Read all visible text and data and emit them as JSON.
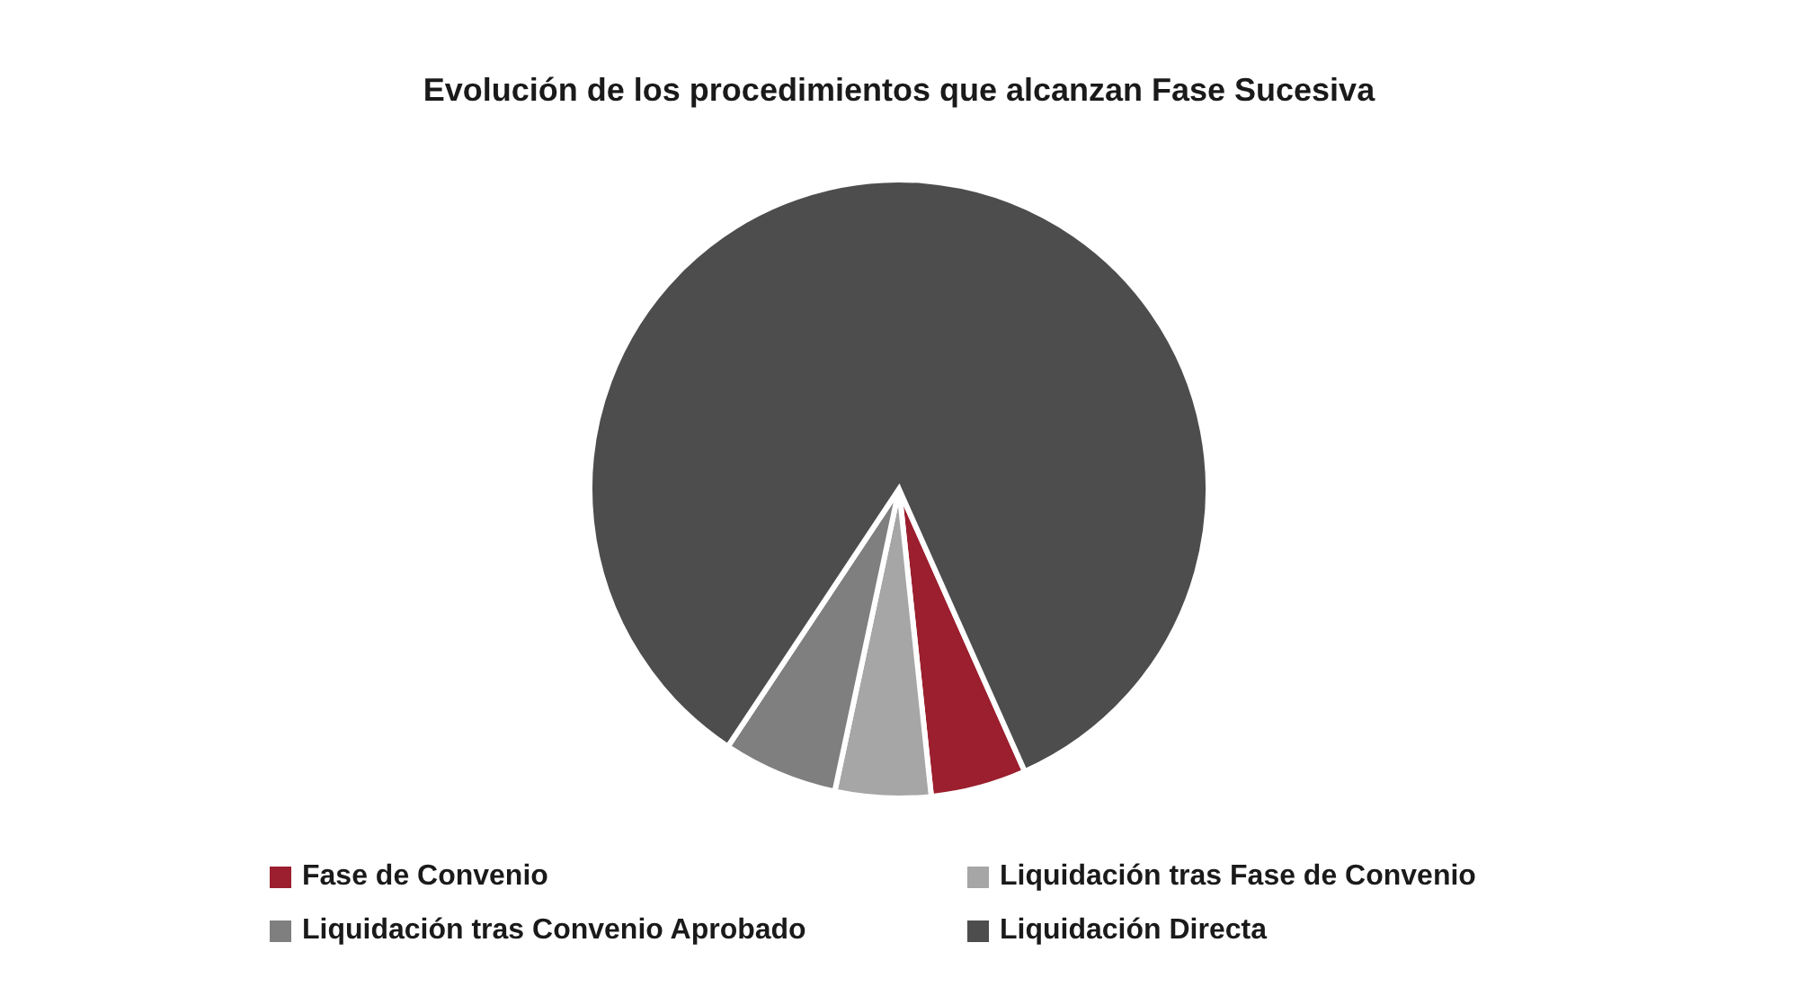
{
  "chart_data": {
    "type": "pie",
    "title": "Evolución de los procedimientos que alcanzan Fase Sucesiva",
    "categories": [
      "Fase de Convenio",
      "Liquidación tras Fase de Convenio",
      "Liquidación tras Convenio Aprobado",
      "Liquidación Directa"
    ],
    "values": [
      5,
      5,
      6,
      84
    ],
    "colors": [
      "#9b1f2e",
      "#a6a6a6",
      "#7f7f7f",
      "#4d4d4d"
    ],
    "legend": "bottom"
  }
}
